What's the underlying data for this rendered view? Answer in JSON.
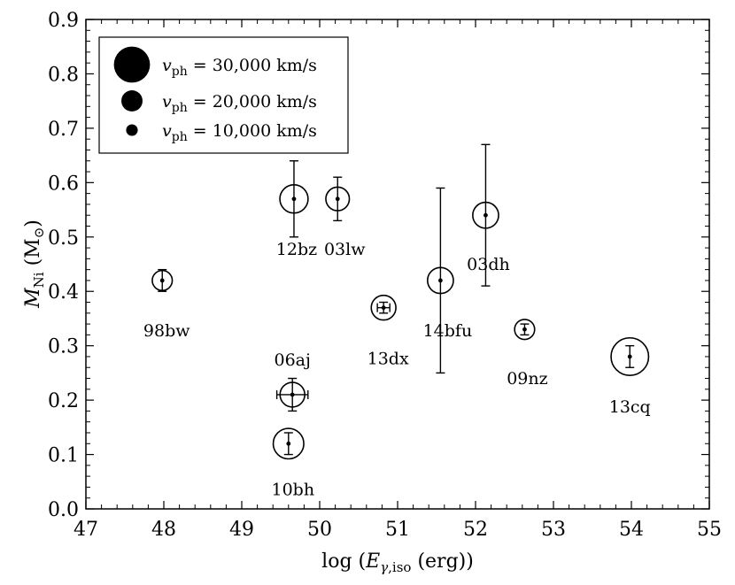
{
  "chart_data": {
    "type": "scatter",
    "xlabel": "log (E_γ,iso (erg))",
    "ylabel": "M_Ni (M_⊙)",
    "xlim": [
      47,
      55
    ],
    "ylim": [
      0.0,
      0.9
    ],
    "xticks": [
      "47",
      "48",
      "49",
      "50",
      "51",
      "52",
      "53",
      "54",
      "55"
    ],
    "yticks": [
      "0.0",
      "0.1",
      "0.2",
      "0.3",
      "0.4",
      "0.5",
      "0.6",
      "0.7",
      "0.8",
      "0.9"
    ],
    "grid": false,
    "legend_position": "top-left",
    "legend": [
      {
        "label": "v_ph = 30,000 km/s",
        "vph": 30000
      },
      {
        "label": "v_ph = 20,000 km/s",
        "vph": 20000
      },
      {
        "label": "v_ph = 10,000 km/s",
        "vph": 10000
      }
    ],
    "points": [
      {
        "name": "98bw",
        "x": 47.98,
        "y": 0.42,
        "yerr": 0.02,
        "xerr": 0.0,
        "vph": 15000
      },
      {
        "name": "06aj",
        "x": 49.65,
        "y": 0.21,
        "yerr": 0.03,
        "xerr": 0.2,
        "vph": 19000
      },
      {
        "name": "10bh",
        "x": 49.6,
        "y": 0.12,
        "yerr": 0.02,
        "xerr": 0.0,
        "vph": 24000
      },
      {
        "name": "12bz",
        "x": 49.67,
        "y": 0.57,
        "yerr": 0.07,
        "xerr": 0.0,
        "vph": 22000
      },
      {
        "name": "03lw",
        "x": 50.23,
        "y": 0.57,
        "yerr": 0.04,
        "xerr": 0.0,
        "vph": 18000
      },
      {
        "name": "13dx",
        "x": 50.82,
        "y": 0.37,
        "yerr": 0.01,
        "xerr": 0.08,
        "vph": 19000
      },
      {
        "name": "14bfu",
        "x": 51.55,
        "y": 0.42,
        "yerr": 0.17,
        "xerr": 0.0,
        "vph": 20000
      },
      {
        "name": "03dh",
        "x": 52.13,
        "y": 0.54,
        "yerr": 0.13,
        "xerr": 0.0,
        "vph": 20000
      },
      {
        "name": "09nz",
        "x": 52.63,
        "y": 0.33,
        "yerr": 0.01,
        "xerr": 0.0,
        "vph": 15000
      },
      {
        "name": "13cq",
        "x": 53.98,
        "y": 0.28,
        "yerr": 0.02,
        "xerr": 0.0,
        "vph": 30000
      }
    ]
  }
}
